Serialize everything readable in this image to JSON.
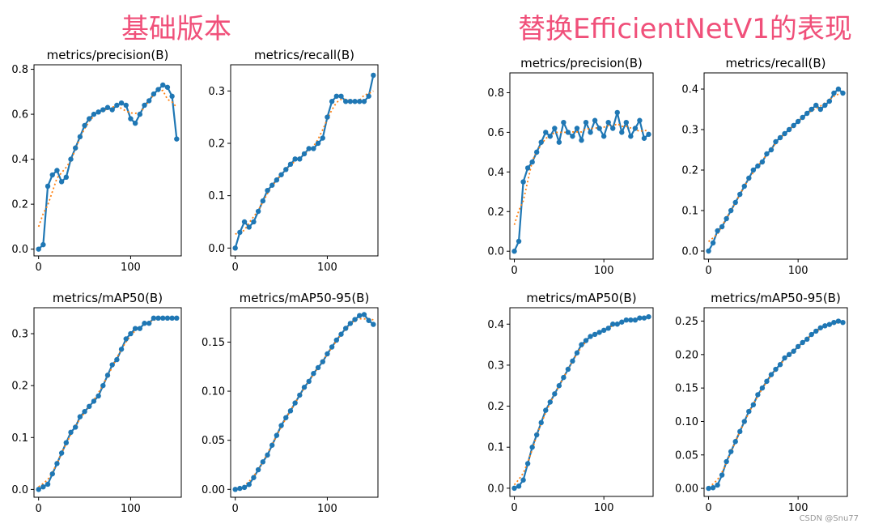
{
  "panels": [
    {
      "title": "基础版本",
      "color": "#f0507a"
    },
    {
      "title": "替换EfficientNetV1的表现",
      "color": "#f0507a"
    }
  ],
  "watermark": "CSDN @Snu77",
  "colors": {
    "series": "#1f77b4",
    "smooth": "#ff7f0e"
  },
  "chart_data": [
    {
      "type": "line",
      "group": 0,
      "title": "metrics/precision(B)",
      "xlim": [
        -5,
        155
      ],
      "ylim": [
        -0.03,
        0.82
      ],
      "xticks": [
        0,
        100
      ],
      "yticks": [
        0.0,
        0.2,
        0.4,
        0.6,
        0.8
      ],
      "ytick_labels": [
        "0.0",
        "0.2",
        "0.4",
        "0.6",
        "0.8"
      ],
      "series": [
        {
          "x": [
            0,
            5,
            10,
            15,
            20,
            25,
            30,
            35,
            40,
            45,
            50,
            55,
            60,
            65,
            70,
            75,
            80,
            85,
            90,
            95,
            100,
            105,
            110,
            115,
            120,
            125,
            130,
            135,
            140,
            145,
            150
          ],
          "values": [
            0.0,
            0.02,
            0.28,
            0.33,
            0.35,
            0.3,
            0.32,
            0.4,
            0.45,
            0.5,
            0.55,
            0.58,
            0.6,
            0.61,
            0.62,
            0.63,
            0.62,
            0.64,
            0.65,
            0.64,
            0.58,
            0.56,
            0.6,
            0.64,
            0.66,
            0.69,
            0.71,
            0.73,
            0.72,
            0.68,
            0.49
          ]
        }
      ]
    },
    {
      "type": "line",
      "group": 0,
      "title": "metrics/recall(B)",
      "xlim": [
        -5,
        155
      ],
      "ylim": [
        -0.015,
        0.35
      ],
      "xticks": [
        0,
        100
      ],
      "yticks": [
        0.0,
        0.1,
        0.2,
        0.3
      ],
      "ytick_labels": [
        "0.0",
        "0.1",
        "0.2",
        "0.3"
      ],
      "series": [
        {
          "x": [
            0,
            5,
            10,
            15,
            20,
            25,
            30,
            35,
            40,
            45,
            50,
            55,
            60,
            65,
            70,
            75,
            80,
            85,
            90,
            95,
            100,
            105,
            110,
            115,
            120,
            125,
            130,
            135,
            140,
            145,
            150
          ],
          "values": [
            0.0,
            0.03,
            0.05,
            0.04,
            0.05,
            0.07,
            0.09,
            0.11,
            0.12,
            0.13,
            0.14,
            0.15,
            0.16,
            0.17,
            0.17,
            0.18,
            0.19,
            0.19,
            0.2,
            0.21,
            0.25,
            0.28,
            0.29,
            0.29,
            0.28,
            0.28,
            0.28,
            0.28,
            0.28,
            0.29,
            0.33
          ]
        }
      ]
    },
    {
      "type": "line",
      "group": 0,
      "title": "metrics/mAP50(B)",
      "xlim": [
        -5,
        155
      ],
      "ylim": [
        -0.015,
        0.35
      ],
      "xticks": [
        0,
        100
      ],
      "yticks": [
        0.0,
        0.1,
        0.2,
        0.3
      ],
      "ytick_labels": [
        "0.0",
        "0.1",
        "0.2",
        "0.3"
      ],
      "series": [
        {
          "x": [
            0,
            5,
            10,
            15,
            20,
            25,
            30,
            35,
            40,
            45,
            50,
            55,
            60,
            65,
            70,
            75,
            80,
            85,
            90,
            95,
            100,
            105,
            110,
            115,
            120,
            125,
            130,
            135,
            140,
            145,
            150
          ],
          "values": [
            0.0,
            0.005,
            0.01,
            0.03,
            0.05,
            0.07,
            0.09,
            0.11,
            0.12,
            0.14,
            0.15,
            0.16,
            0.17,
            0.18,
            0.2,
            0.22,
            0.24,
            0.25,
            0.27,
            0.29,
            0.3,
            0.31,
            0.31,
            0.32,
            0.32,
            0.33,
            0.33,
            0.33,
            0.33,
            0.33,
            0.33
          ]
        }
      ]
    },
    {
      "type": "line",
      "group": 0,
      "title": "metrics/mAP50-95(B)",
      "xlim": [
        -5,
        155
      ],
      "ylim": [
        -0.008,
        0.185
      ],
      "xticks": [
        0,
        100
      ],
      "yticks": [
        0.0,
        0.05,
        0.1,
        0.15
      ],
      "ytick_labels": [
        "0.00",
        "0.05",
        "0.10",
        "0.15"
      ],
      "series": [
        {
          "x": [
            0,
            5,
            10,
            15,
            20,
            25,
            30,
            35,
            40,
            45,
            50,
            55,
            60,
            65,
            70,
            75,
            80,
            85,
            90,
            95,
            100,
            105,
            110,
            115,
            120,
            125,
            130,
            135,
            140,
            145,
            150
          ],
          "values": [
            0.0,
            0.001,
            0.002,
            0.005,
            0.012,
            0.02,
            0.028,
            0.035,
            0.045,
            0.055,
            0.065,
            0.073,
            0.08,
            0.088,
            0.096,
            0.104,
            0.11,
            0.118,
            0.124,
            0.13,
            0.138,
            0.145,
            0.152,
            0.158,
            0.164,
            0.169,
            0.173,
            0.177,
            0.178,
            0.172,
            0.168
          ]
        }
      ]
    },
    {
      "type": "line",
      "group": 1,
      "title": "metrics/precision(B)",
      "xlim": [
        -5,
        155
      ],
      "ylim": [
        -0.04,
        0.9
      ],
      "xticks": [
        0,
        100
      ],
      "yticks": [
        0.0,
        0.2,
        0.4,
        0.6,
        0.8
      ],
      "ytick_labels": [
        "0.0",
        "0.2",
        "0.4",
        "0.6",
        "0.8"
      ],
      "series": [
        {
          "x": [
            0,
            5,
            10,
            15,
            20,
            25,
            30,
            35,
            40,
            45,
            50,
            55,
            60,
            65,
            70,
            75,
            80,
            85,
            90,
            95,
            100,
            105,
            110,
            115,
            120,
            125,
            130,
            135,
            140,
            145,
            150
          ],
          "values": [
            0.0,
            0.05,
            0.35,
            0.42,
            0.45,
            0.5,
            0.55,
            0.6,
            0.58,
            0.62,
            0.55,
            0.65,
            0.6,
            0.58,
            0.62,
            0.56,
            0.65,
            0.6,
            0.66,
            0.62,
            0.58,
            0.65,
            0.62,
            0.7,
            0.6,
            0.65,
            0.58,
            0.62,
            0.66,
            0.57,
            0.59
          ]
        }
      ]
    },
    {
      "type": "line",
      "group": 1,
      "title": "metrics/recall(B)",
      "xlim": [
        -5,
        155
      ],
      "ylim": [
        -0.02,
        0.44
      ],
      "xticks": [
        0,
        100
      ],
      "yticks": [
        0.0,
        0.1,
        0.2,
        0.3,
        0.4
      ],
      "ytick_labels": [
        "0.0",
        "0.1",
        "0.2",
        "0.3",
        "0.4"
      ],
      "series": [
        {
          "x": [
            0,
            5,
            10,
            15,
            20,
            25,
            30,
            35,
            40,
            45,
            50,
            55,
            60,
            65,
            70,
            75,
            80,
            85,
            90,
            95,
            100,
            105,
            110,
            115,
            120,
            125,
            130,
            135,
            140,
            145,
            150
          ],
          "values": [
            0.0,
            0.02,
            0.05,
            0.06,
            0.08,
            0.1,
            0.12,
            0.14,
            0.16,
            0.18,
            0.2,
            0.21,
            0.22,
            0.24,
            0.25,
            0.27,
            0.28,
            0.29,
            0.3,
            0.31,
            0.32,
            0.33,
            0.34,
            0.35,
            0.36,
            0.35,
            0.36,
            0.37,
            0.39,
            0.4,
            0.39
          ]
        }
      ]
    },
    {
      "type": "line",
      "group": 1,
      "title": "metrics/mAP50(B)",
      "xlim": [
        -5,
        155
      ],
      "ylim": [
        -0.02,
        0.44
      ],
      "xticks": [
        0,
        100
      ],
      "yticks": [
        0.0,
        0.1,
        0.2,
        0.3,
        0.4
      ],
      "ytick_labels": [
        "0.0",
        "0.1",
        "0.2",
        "0.3",
        "0.4"
      ],
      "series": [
        {
          "x": [
            0,
            5,
            10,
            15,
            20,
            25,
            30,
            35,
            40,
            45,
            50,
            55,
            60,
            65,
            70,
            75,
            80,
            85,
            90,
            95,
            100,
            105,
            110,
            115,
            120,
            125,
            130,
            135,
            140,
            145,
            150
          ],
          "values": [
            0.0,
            0.005,
            0.02,
            0.06,
            0.1,
            0.13,
            0.16,
            0.19,
            0.21,
            0.23,
            0.25,
            0.27,
            0.29,
            0.31,
            0.33,
            0.35,
            0.36,
            0.37,
            0.375,
            0.38,
            0.385,
            0.39,
            0.4,
            0.4,
            0.405,
            0.41,
            0.41,
            0.41,
            0.415,
            0.415,
            0.418
          ]
        }
      ]
    },
    {
      "type": "line",
      "group": 1,
      "title": "metrics/mAP50-95(B)",
      "xlim": [
        -5,
        155
      ],
      "ylim": [
        -0.012,
        0.27
      ],
      "xticks": [
        0,
        100
      ],
      "yticks": [
        0.0,
        0.05,
        0.1,
        0.15,
        0.2,
        0.25
      ],
      "ytick_labels": [
        "0.00",
        "0.05",
        "0.10",
        "0.15",
        "0.20",
        "0.25"
      ],
      "series": [
        {
          "x": [
            0,
            5,
            10,
            15,
            20,
            25,
            30,
            35,
            40,
            45,
            50,
            55,
            60,
            65,
            70,
            75,
            80,
            85,
            90,
            95,
            100,
            105,
            110,
            115,
            120,
            125,
            130,
            135,
            140,
            145,
            150
          ],
          "values": [
            0.0,
            0.001,
            0.005,
            0.02,
            0.04,
            0.055,
            0.07,
            0.085,
            0.1,
            0.115,
            0.125,
            0.14,
            0.15,
            0.16,
            0.17,
            0.178,
            0.185,
            0.195,
            0.2,
            0.205,
            0.212,
            0.218,
            0.223,
            0.23,
            0.235,
            0.24,
            0.243,
            0.245,
            0.248,
            0.25,
            0.248
          ]
        }
      ]
    }
  ]
}
